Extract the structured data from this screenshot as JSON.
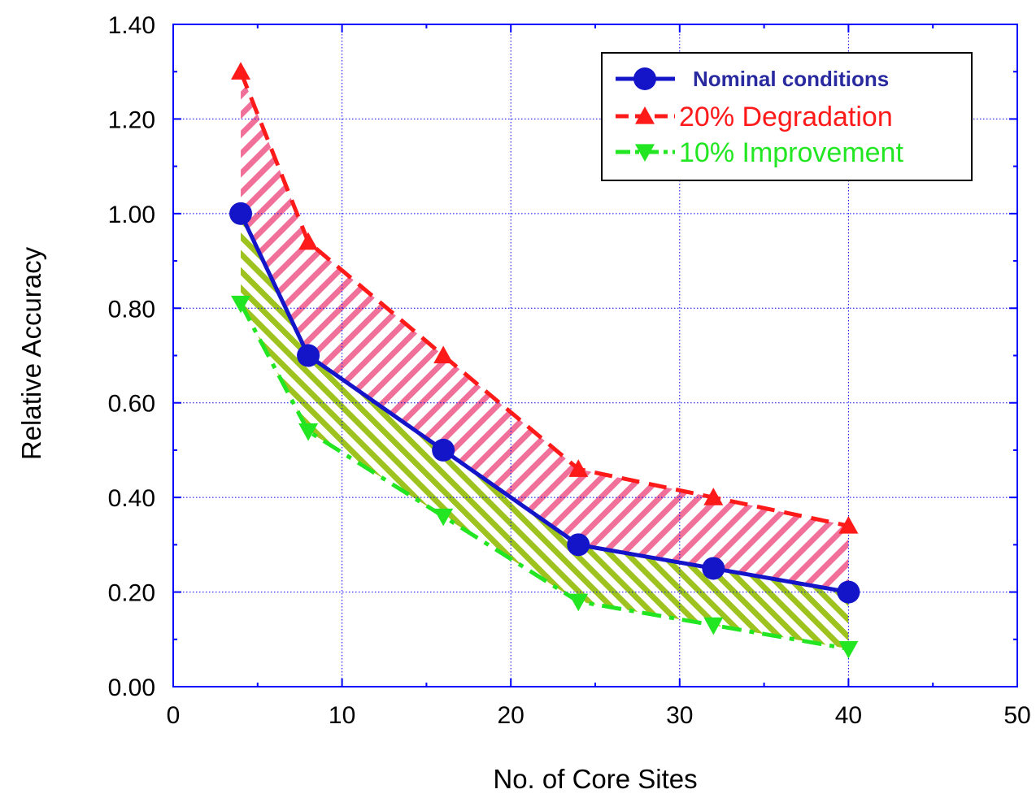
{
  "chart_data": {
    "type": "line",
    "title": "",
    "xlabel": "No. of Core Sites",
    "ylabel": "Relative Accuracy",
    "xlim": [
      0,
      50
    ],
    "ylim": [
      0,
      1.4
    ],
    "x_ticks": [
      0,
      10,
      20,
      30,
      40,
      50
    ],
    "x_tick_labels": [
      "0",
      "10",
      "20",
      "30",
      "40",
      "50"
    ],
    "y_ticks": [
      0,
      0.2,
      0.4,
      0.6,
      0.8,
      1.0,
      1.2,
      1.4
    ],
    "y_tick_labels": [
      "0.00",
      "0.20",
      "0.40",
      "0.60",
      "0.80",
      "1.00",
      "1.20",
      "1.40"
    ],
    "grid": true,
    "legend_position": "top-right",
    "x": [
      4,
      8,
      16,
      24,
      32,
      40
    ],
    "series": [
      {
        "name": "Nominal conditions",
        "values": [
          1.0,
          0.7,
          0.5,
          0.3,
          0.25,
          0.2
        ],
        "color": "#1414c8",
        "marker": "circle",
        "line_style": "solid"
      },
      {
        "name": "20% Degradation",
        "values": [
          1.3,
          0.94,
          0.7,
          0.46,
          0.4,
          0.34
        ],
        "color": "#ff1a1a",
        "marker": "triangle-up",
        "line_style": "dashed"
      },
      {
        "name": "10% Improvement",
        "values": [
          0.81,
          0.54,
          0.36,
          0.18,
          0.13,
          0.08
        ],
        "color": "#22e622",
        "marker": "triangle-down",
        "line_style": "dash-dot"
      }
    ],
    "bands": [
      {
        "between": [
          "Nominal conditions",
          "20% Degradation"
        ],
        "color": "#f0709a",
        "pattern": "diagonal-hatch"
      },
      {
        "between": [
          "10% Improvement",
          "Nominal conditions"
        ],
        "color": "#9ec21e",
        "pattern": "diagonal-hatch"
      }
    ],
    "colors": {
      "axis": "#0000ff",
      "grid": "#0000ff",
      "nominal_legend_text": "#2a2aa0"
    }
  }
}
